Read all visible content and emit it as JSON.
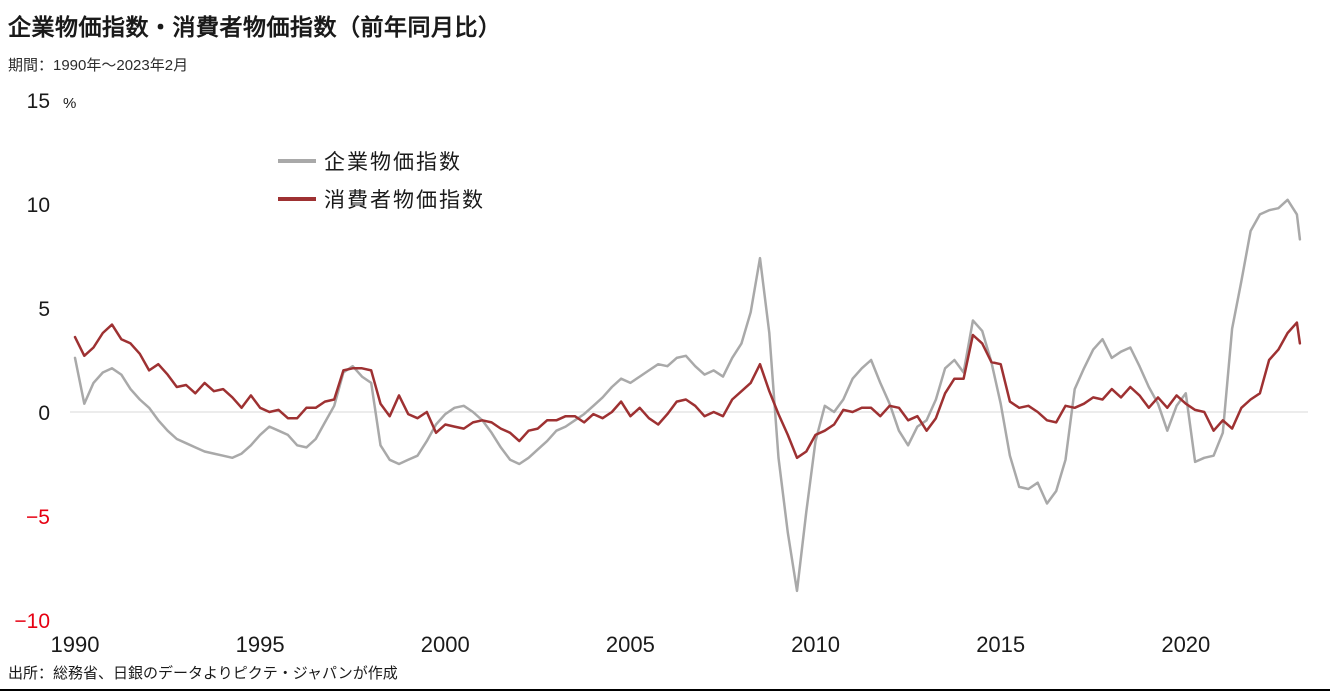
{
  "header": {
    "title": "企業物価指数・消費者物価指数（前年同月比）",
    "subtitle": "期間：1990年～2023年2月"
  },
  "footer": {
    "source": "出所：総務省、日銀のデータよりピクテ・ジャパンが作成"
  },
  "chart_data": {
    "type": "line",
    "title": "企業物価指数・消費者物価指数（前年同月比）",
    "unit": "%",
    "xlim": [
      1990,
      2023.3
    ],
    "ylim": [
      -10,
      15
    ],
    "grid": "zero-line-only",
    "legend_position": "top-left-inside",
    "x_ticks": [
      1990,
      1995,
      2000,
      2005,
      2010,
      2015,
      2020
    ],
    "x_tick_labels": [
      "1990",
      "1995",
      "2000",
      "2005",
      "2010",
      "2015",
      "2020"
    ],
    "y_ticks": [
      15,
      10,
      5,
      0,
      -5,
      -10
    ],
    "y_tick_labels": [
      "15",
      "10",
      "5",
      "0",
      "−5",
      "−10"
    ],
    "colors": {
      "cgpi_line": "#a9a9a9",
      "cpi_line": "#9e3132",
      "negative_tick": "#e60012",
      "axis_text": "#1a1a1a",
      "zero_gridline": "#d9d9d9"
    },
    "legend": [
      {
        "label": "企業物価指数",
        "color": "#a9a9a9"
      },
      {
        "label": "消費者物価指数",
        "color": "#9e3132"
      }
    ],
    "x": [
      1990,
      1990.25,
      1990.5,
      1990.75,
      1991,
      1991.25,
      1991.5,
      1991.75,
      1992,
      1992.25,
      1992.5,
      1992.75,
      1993,
      1993.25,
      1993.5,
      1993.75,
      1994,
      1994.25,
      1994.5,
      1994.75,
      1995,
      1995.25,
      1995.5,
      1995.75,
      1996,
      1996.25,
      1996.5,
      1996.75,
      1997,
      1997.25,
      1997.5,
      1997.75,
      1998,
      1998.25,
      1998.5,
      1998.75,
      1999,
      1999.25,
      1999.5,
      1999.75,
      2000,
      2000.25,
      2000.5,
      2000.75,
      2001,
      2001.25,
      2001.5,
      2001.75,
      2002,
      2002.25,
      2002.5,
      2002.75,
      2003,
      2003.25,
      2003.5,
      2003.75,
      2004,
      2004.25,
      2004.5,
      2004.75,
      2005,
      2005.25,
      2005.5,
      2005.75,
      2006,
      2006.25,
      2006.5,
      2006.75,
      2007,
      2007.25,
      2007.5,
      2007.75,
      2008,
      2008.25,
      2008.5,
      2008.75,
      2009,
      2009.25,
      2009.5,
      2009.75,
      2010,
      2010.25,
      2010.5,
      2010.75,
      2011,
      2011.25,
      2011.5,
      2011.75,
      2012,
      2012.25,
      2012.5,
      2012.75,
      2013,
      2013.25,
      2013.5,
      2013.75,
      2014,
      2014.25,
      2014.5,
      2014.75,
      2015,
      2015.25,
      2015.5,
      2015.75,
      2016,
      2016.25,
      2016.5,
      2016.75,
      2017,
      2017.25,
      2017.5,
      2017.75,
      2018,
      2018.25,
      2018.5,
      2018.75,
      2019,
      2019.25,
      2019.5,
      2019.75,
      2020,
      2020.25,
      2020.5,
      2020.75,
      2021,
      2021.25,
      2021.5,
      2021.75,
      2022,
      2022.25,
      2022.5,
      2022.75,
      2023,
      2023.08
    ],
    "series": [
      {
        "name": "企業物価指数",
        "color": "#a9a9a9",
        "values": [
          2.6,
          0.4,
          1.4,
          1.9,
          2.1,
          1.8,
          1.1,
          0.6,
          0.2,
          -0.4,
          -0.9,
          -1.3,
          -1.5,
          -1.7,
          -1.9,
          -2.0,
          -2.1,
          -2.2,
          -2.0,
          -1.6,
          -1.1,
          -0.7,
          -0.9,
          -1.1,
          -1.6,
          -1.7,
          -1.3,
          -0.5,
          0.3,
          1.9,
          2.2,
          1.7,
          1.4,
          -1.6,
          -2.3,
          -2.5,
          -2.3,
          -2.1,
          -1.4,
          -0.6,
          -0.1,
          0.2,
          0.3,
          0.0,
          -0.4,
          -1.0,
          -1.7,
          -2.3,
          -2.5,
          -2.2,
          -1.8,
          -1.4,
          -0.9,
          -0.7,
          -0.4,
          -0.1,
          0.3,
          0.7,
          1.2,
          1.6,
          1.4,
          1.7,
          2.0,
          2.3,
          2.2,
          2.6,
          2.7,
          2.2,
          1.8,
          2.0,
          1.7,
          2.6,
          3.3,
          4.8,
          7.4,
          3.8,
          -2.2,
          -5.8,
          -8.6,
          -4.8,
          -1.4,
          0.3,
          0.0,
          0.6,
          1.6,
          2.1,
          2.5,
          1.4,
          0.4,
          -0.9,
          -1.6,
          -0.7,
          -0.4,
          0.6,
          2.1,
          2.5,
          1.9,
          4.4,
          3.9,
          2.4,
          0.4,
          -2.1,
          -3.6,
          -3.7,
          -3.4,
          -4.4,
          -3.8,
          -2.3,
          1.1,
          2.1,
          3.0,
          3.5,
          2.6,
          2.9,
          3.1,
          2.2,
          1.2,
          0.4,
          -0.9,
          0.3,
          0.9,
          -2.4,
          -2.2,
          -2.1,
          -1.0,
          4.0,
          6.3,
          8.7,
          9.5,
          9.7,
          9.8,
          10.2,
          9.5,
          8.3
        ]
      },
      {
        "name": "消費者物価指数",
        "color": "#9e3132",
        "values": [
          3.6,
          2.7,
          3.1,
          3.8,
          4.2,
          3.5,
          3.3,
          2.8,
          2.0,
          2.3,
          1.8,
          1.2,
          1.3,
          0.9,
          1.4,
          1.0,
          1.1,
          0.7,
          0.2,
          0.8,
          0.2,
          0.0,
          0.1,
          -0.3,
          -0.3,
          0.2,
          0.2,
          0.5,
          0.6,
          2.0,
          2.1,
          2.1,
          2.0,
          0.4,
          -0.2,
          0.8,
          -0.1,
          -0.3,
          0.0,
          -1.0,
          -0.6,
          -0.7,
          -0.8,
          -0.5,
          -0.4,
          -0.5,
          -0.8,
          -1.0,
          -1.4,
          -0.9,
          -0.8,
          -0.4,
          -0.4,
          -0.2,
          -0.2,
          -0.5,
          -0.1,
          -0.3,
          0.0,
          0.5,
          -0.2,
          0.2,
          -0.3,
          -0.6,
          -0.1,
          0.5,
          0.6,
          0.3,
          -0.2,
          0.0,
          -0.2,
          0.6,
          1.0,
          1.4,
          2.3,
          1.0,
          -0.1,
          -1.1,
          -2.2,
          -1.9,
          -1.1,
          -0.9,
          -0.6,
          0.1,
          0.0,
          0.2,
          0.2,
          -0.2,
          0.3,
          0.2,
          -0.4,
          -0.2,
          -0.9,
          -0.3,
          0.9,
          1.6,
          1.6,
          3.7,
          3.3,
          2.4,
          2.3,
          0.5,
          0.2,
          0.3,
          0.0,
          -0.4,
          -0.5,
          0.3,
          0.2,
          0.4,
          0.7,
          0.6,
          1.1,
          0.7,
          1.2,
          0.8,
          0.2,
          0.7,
          0.2,
          0.8,
          0.4,
          0.1,
          0.0,
          -0.9,
          -0.4,
          -0.8,
          0.2,
          0.6,
          0.9,
          2.5,
          3.0,
          3.8,
          4.3,
          3.3
        ]
      }
    ]
  }
}
